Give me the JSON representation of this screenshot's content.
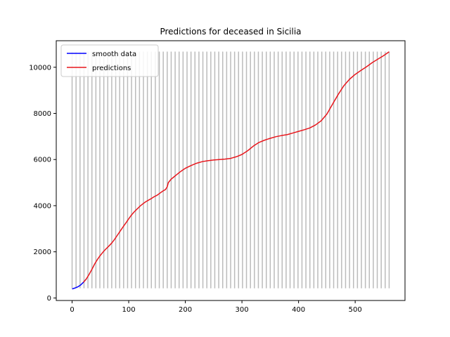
{
  "chart_data": {
    "type": "line",
    "title": "Predictions for deceased in Sicilia",
    "xlabel": "",
    "ylabel": "",
    "xlim": [
      -28,
      588
    ],
    "ylim": [
      -110,
      11150
    ],
    "xticks": [
      0,
      100,
      200,
      300,
      400,
      500
    ],
    "yticks": [
      0,
      2000,
      4000,
      6000,
      8000,
      10000
    ],
    "grid": false,
    "legend_position": "top-left",
    "vertical_markers": {
      "color": "#bbbbbb",
      "start": 0,
      "step": 7,
      "end": 560,
      "y_from": 420,
      "y_to": 10680
    },
    "series": [
      {
        "name": "smooth data",
        "color": "#0000ff",
        "x": [
          0,
          5,
          10,
          15,
          20,
          25
        ],
        "y": [
          390,
          430,
          480,
          560,
          680,
          820
        ]
      },
      {
        "name": "predictions",
        "color": "#e8161c",
        "x": [
          20,
          25,
          30,
          35,
          40,
          45,
          50,
          55,
          60,
          65,
          70,
          75,
          80,
          85,
          90,
          95,
          100,
          105,
          110,
          115,
          120,
          125,
          130,
          135,
          140,
          145,
          150,
          155,
          160,
          165,
          168,
          170,
          175,
          180,
          185,
          190,
          195,
          200,
          210,
          220,
          230,
          240,
          250,
          260,
          270,
          280,
          290,
          300,
          310,
          320,
          330,
          340,
          350,
          360,
          370,
          380,
          390,
          400,
          410,
          420,
          430,
          440,
          450,
          460,
          470,
          480,
          490,
          500,
          510,
          520,
          530,
          540,
          550,
          560
        ],
        "y": [
          680,
          820,
          1020,
          1240,
          1480,
          1680,
          1850,
          2000,
          2130,
          2250,
          2380,
          2540,
          2720,
          2900,
          3080,
          3250,
          3430,
          3600,
          3740,
          3860,
          3980,
          4080,
          4170,
          4240,
          4310,
          4390,
          4450,
          4540,
          4630,
          4700,
          4820,
          5000,
          5150,
          5250,
          5350,
          5450,
          5540,
          5620,
          5740,
          5840,
          5910,
          5950,
          5980,
          6000,
          6020,
          6050,
          6120,
          6220,
          6380,
          6580,
          6740,
          6840,
          6920,
          6990,
          7040,
          7080,
          7150,
          7220,
          7290,
          7370,
          7500,
          7680,
          7970,
          8400,
          8820,
          9200,
          9480,
          9690,
          9860,
          10020,
          10200,
          10350,
          10500,
          10670
        ]
      }
    ]
  }
}
